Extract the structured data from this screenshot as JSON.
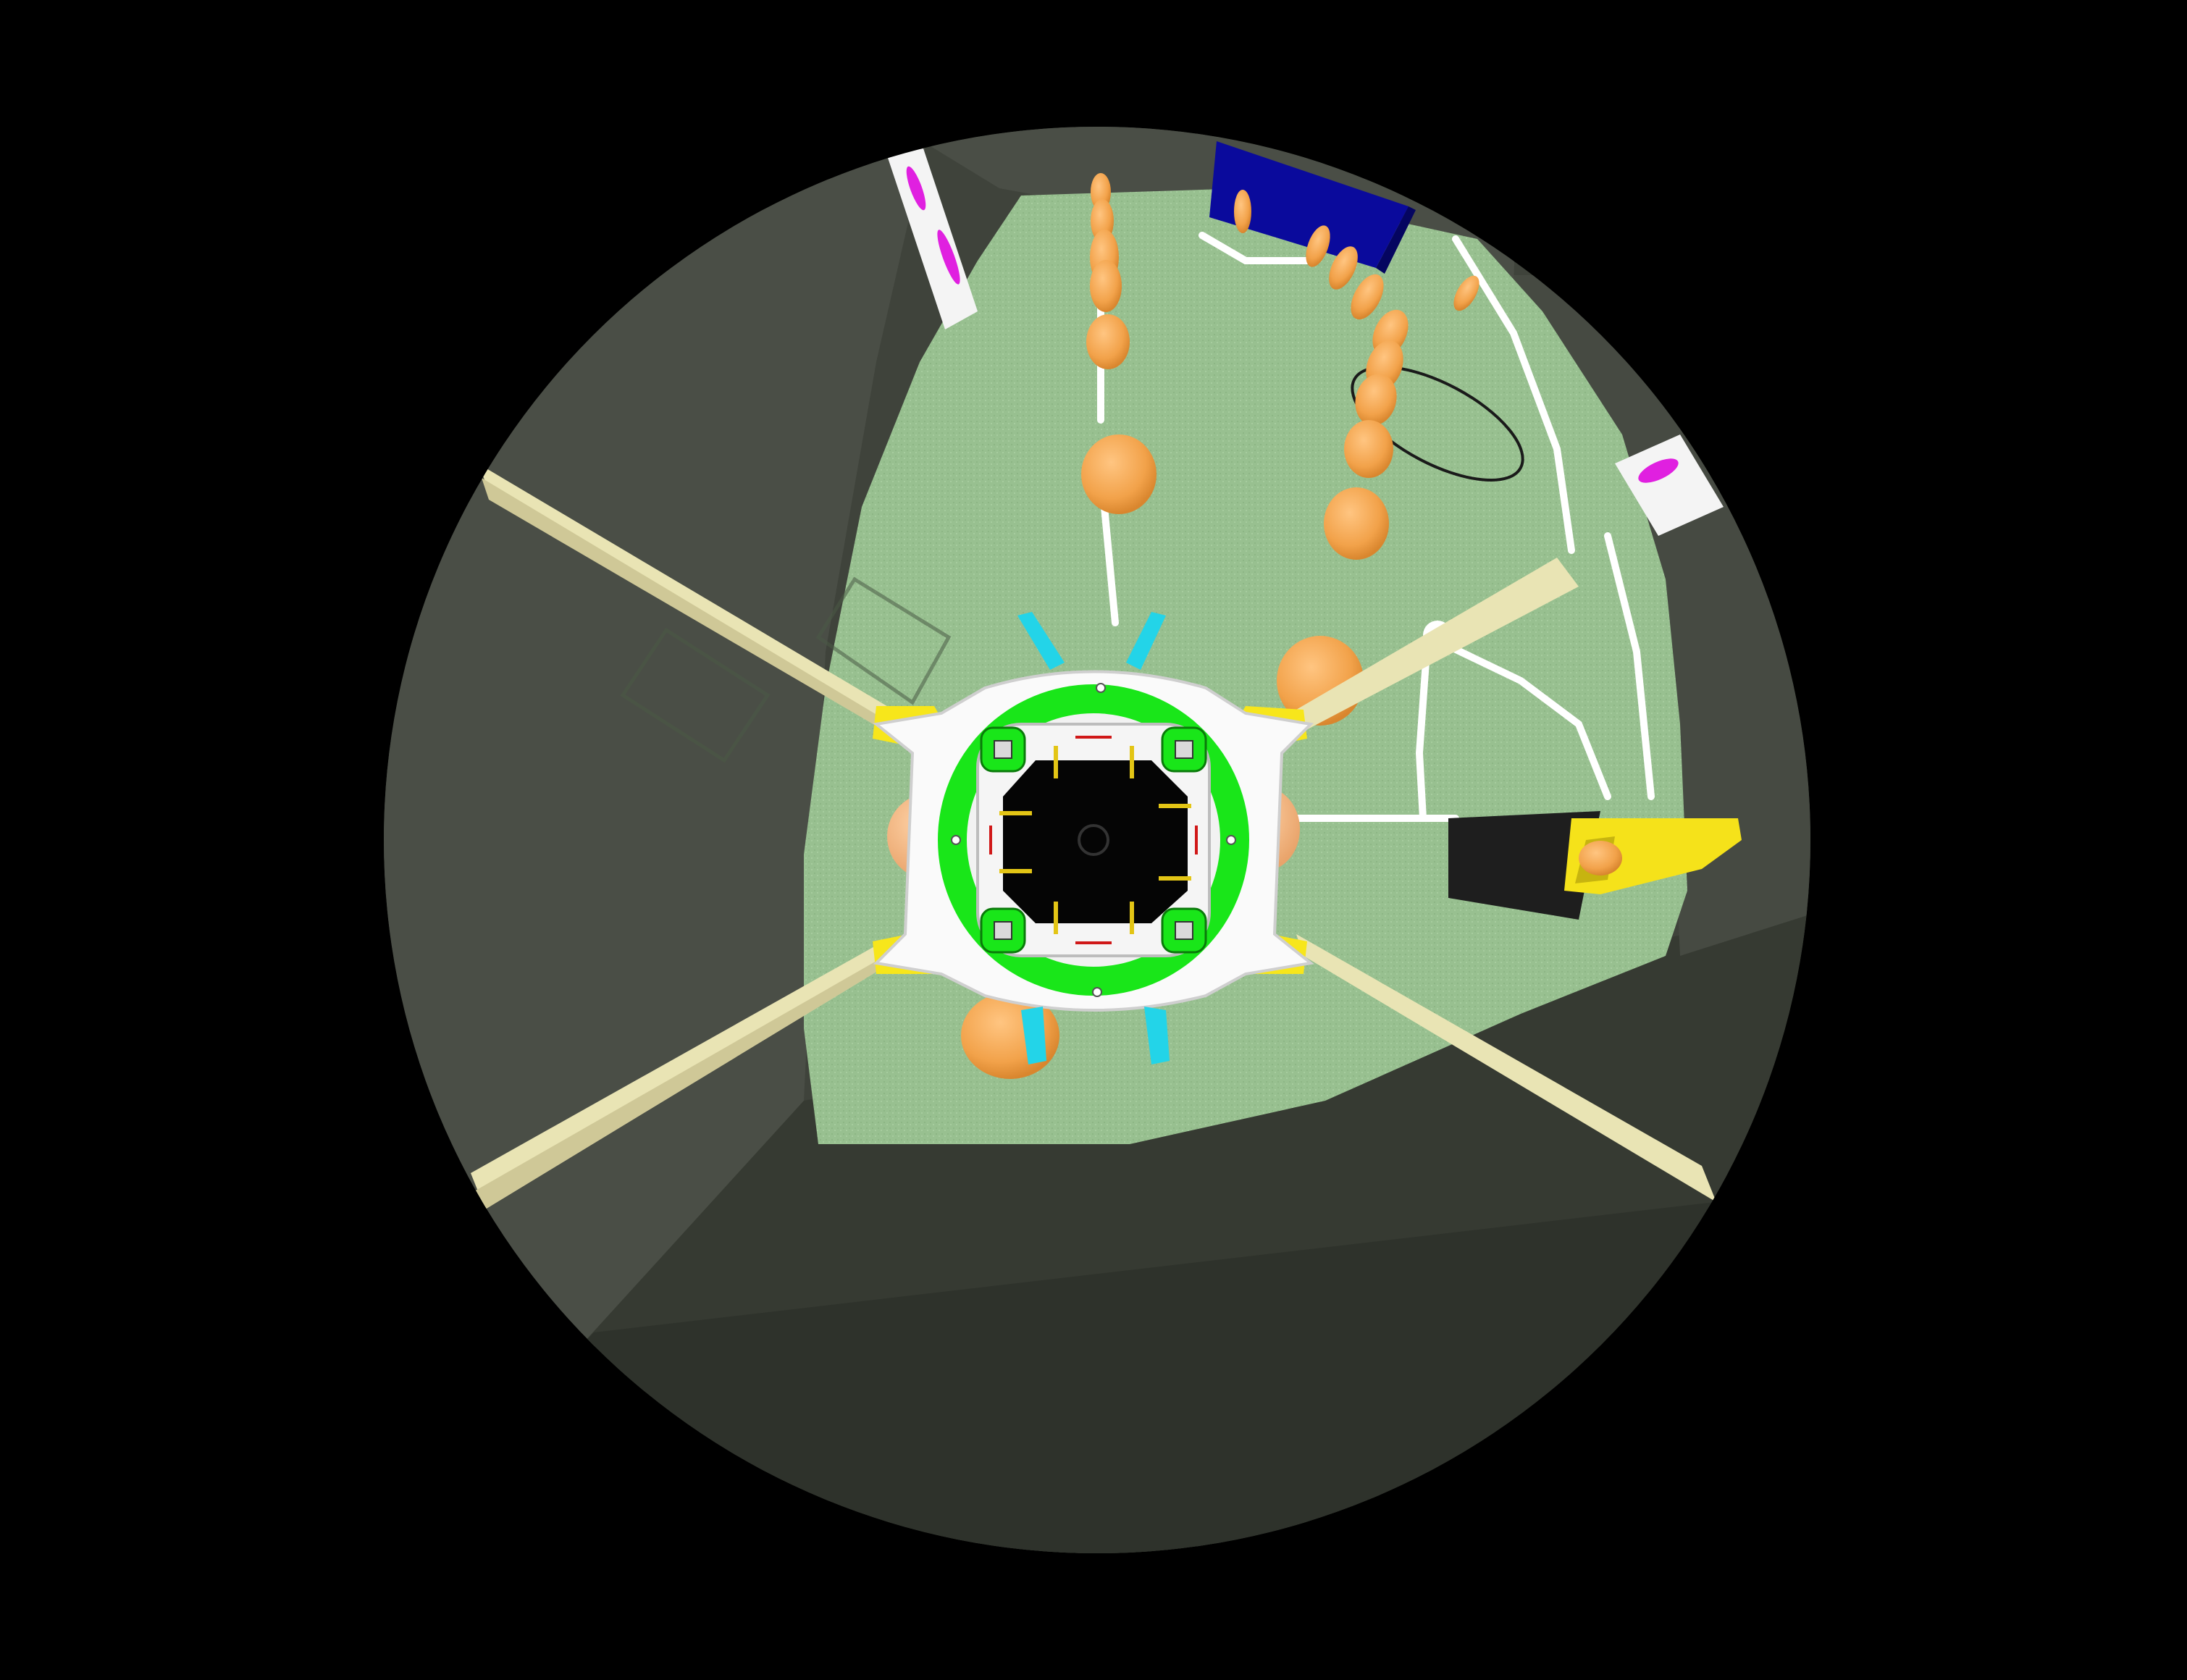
{
  "scene": {
    "kind": "fisheye-camera-render",
    "subject": "robot-soccer-field",
    "background_color": "#000000",
    "wall_color": "#45493f",
    "floor_color": "#98c090",
    "line_color": "#ffffff",
    "ball_color": "#f2a24a",
    "robot_frame_color": "#ffffff",
    "robot_ring_color": "#19e619",
    "robot_accent_color": "#f7e61b",
    "robot_cyan_color": "#23d4e8",
    "goal_blue_color": "#0a0a9c",
    "goal_yellow_color": "#f5e21a",
    "magenta_marker_color": "#e020e0",
    "mast_color": "#e9e4b4"
  }
}
